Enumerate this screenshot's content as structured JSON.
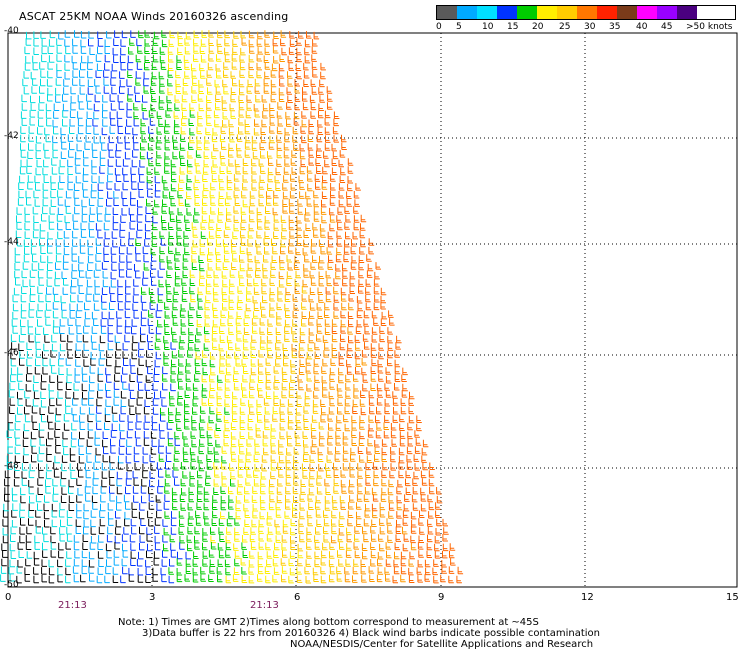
{
  "title": "ASCAT 25KM NOAA Winds 20160326 ascending",
  "legend": {
    "colors": [
      "#5a5a5a",
      "#00aaff",
      "#00e0ff",
      "#0033ff",
      "#00cc00",
      "#ffee00",
      "#ffcc00",
      "#ff7700",
      "#ff2200",
      "#7a3b1a",
      "#ff00ff",
      "#9900ff",
      "#4a0080"
    ],
    "labels": [
      "0",
      "5",
      "10",
      "15",
      "20",
      "25",
      "30",
      "35",
      "40",
      "45",
      ">50 knots"
    ]
  },
  "axes": {
    "lat_labels": [
      "-40",
      "-42",
      "-44",
      "-46",
      "-48",
      "-50"
    ],
    "lon_labels": [
      "0",
      "3",
      "6",
      "9",
      "12",
      "15"
    ],
    "times": [
      "21:13",
      "21:13"
    ]
  },
  "notes": [
    "Note: 1) Times are GMT 2)Times along bottom correspond to measurement at ~45S",
    "3)Data buffer is 22 hrs from 20160326 4) Black wind barbs indicate possible contamination",
    "NOAA/NESDIS/Center for Satellite Applications and Research"
  ],
  "chart_data": {
    "type": "wind-barb-map",
    "title": "ASCAT 25KM NOAA Winds 20160326 ascending",
    "lat_range": [
      -50,
      -40
    ],
    "lon_range": [
      0,
      15
    ],
    "xticks": [
      0,
      3,
      6,
      9,
      12,
      15
    ],
    "yticks": [
      -40,
      -42,
      -44,
      -46,
      -48,
      -50
    ],
    "speed_scale_knots": [
      0,
      5,
      10,
      15,
      20,
      25,
      30,
      35,
      40,
      45,
      50
    ],
    "grid": true
  }
}
